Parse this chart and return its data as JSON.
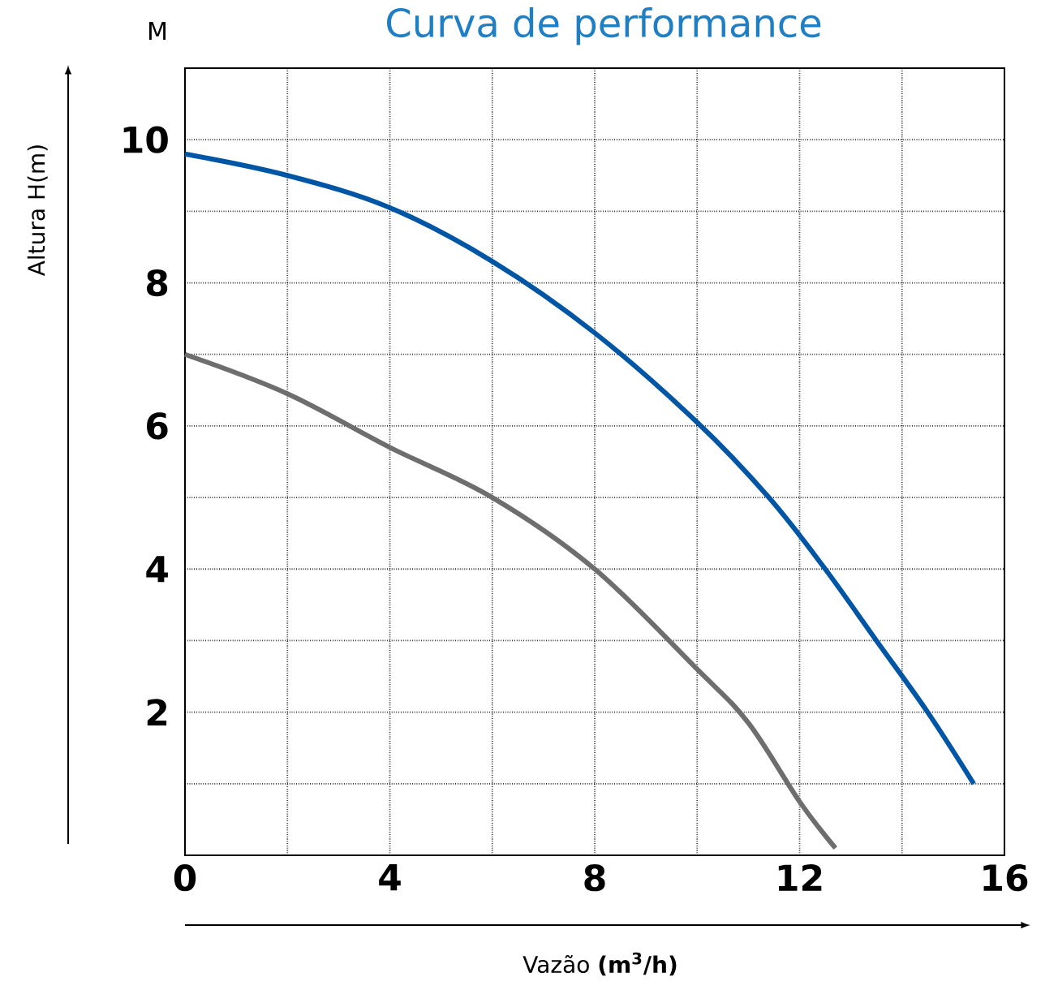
{
  "chart_data": {
    "type": "line",
    "title": "Curva de performance",
    "xlabel": "Vazão **(m$^{3}$/h)**",
    "ylabel": "Altura  H(m)",
    "annotations": [
      "M"
    ],
    "xlim": [
      0,
      16
    ],
    "ylim": [
      0,
      11
    ],
    "xticks": [
      0,
      {
        "value": 2,
        "label": null
      },
      4,
      {
        "value": 6,
        "label": null
      },
      8,
      {
        "value": 10,
        "label": null
      },
      12,
      {
        "value": 14,
        "label": null
      },
      16
    ],
    "yticks": [
      {
        "value": 1,
        "label": null
      },
      2,
      {
        "value": 3,
        "label": null
      },
      4,
      {
        "value": 5,
        "label": null
      },
      6,
      {
        "value": 7,
        "label": null
      },
      8,
      {
        "value": 9,
        "label": null
      },
      10
    ],
    "grid": true,
    "series": [
      {
        "color": "#0055a5",
        "x": [
          0,
          2,
          4,
          6,
          8,
          10,
          11.4,
          12.5,
          13.5,
          14.5,
          15.4
        ],
        "values": [
          9.8,
          9.5,
          9.05,
          8.3,
          7.3,
          6.05,
          5.0,
          4.0,
          3.0,
          2.0,
          1.0
        ]
      },
      {
        "color": "#6e6e6e",
        "x": [
          0,
          2,
          4,
          6,
          8,
          10,
          11,
          12,
          12.7
        ],
        "values": [
          7.0,
          6.45,
          5.7,
          5.0,
          4.0,
          2.6,
          1.85,
          0.75,
          0.1
        ]
      }
    ]
  }
}
